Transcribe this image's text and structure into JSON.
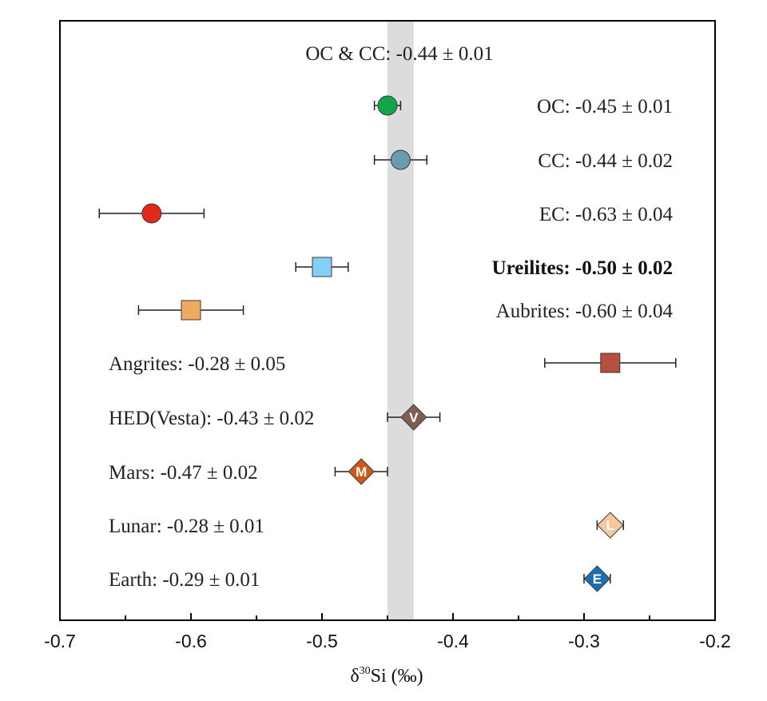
{
  "chart_data": {
    "type": "scatter",
    "xlabel_prefix": "δ",
    "xlabel_sup": "30",
    "xlabel_suffix": "Si (‰)",
    "xlim": [
      -0.7,
      -0.2
    ],
    "xticks": [
      "-0.7",
      "-0.6",
      "-0.5",
      "-0.4",
      "-0.3",
      "-0.2"
    ],
    "band": {
      "x": [
        -0.45,
        -0.43
      ],
      "color": "#dcdcdc"
    },
    "band_label": "OC & CC: -0.44 ± 0.01",
    "series": [
      {
        "name": "OC",
        "label": "OC: -0.45 ± 0.01",
        "x": -0.45,
        "err": 0.01,
        "marker": "circle",
        "color": "#14a54a",
        "letter": "",
        "label_side": "right",
        "bold": false
      },
      {
        "name": "CC",
        "label": "CC: -0.44 ± 0.02",
        "x": -0.44,
        "err": 0.02,
        "marker": "circle",
        "color": "#6a9bb0",
        "letter": "",
        "label_side": "right",
        "bold": false
      },
      {
        "name": "EC",
        "label": "EC: -0.63 ± 0.04",
        "x": -0.63,
        "err": 0.04,
        "marker": "circle",
        "color": "#e02b1c",
        "letter": "",
        "label_side": "right",
        "bold": false
      },
      {
        "name": "Ureilites",
        "label": "Ureilites: -0.50 ± 0.02",
        "x": -0.5,
        "err": 0.02,
        "marker": "square",
        "color": "#84d0f5",
        "letter": "",
        "label_side": "right",
        "bold": true
      },
      {
        "name": "Aubrites",
        "label": "Aubrites: -0.60  ±  0.04",
        "x": -0.6,
        "err": 0.04,
        "marker": "square",
        "color": "#f0aa60",
        "letter": "",
        "label_side": "right",
        "bold": false
      },
      {
        "name": "Angrites",
        "label": "Angrites: -0.28  ±  0.05",
        "x": -0.28,
        "err": 0.05,
        "marker": "square",
        "color": "#b5503e",
        "letter": "",
        "label_side": "left",
        "bold": false
      },
      {
        "name": "HED(Vesta)",
        "label": "HED(Vesta): -0.43  ±  0.02",
        "x": -0.43,
        "err": 0.02,
        "marker": "diamond",
        "color": "#7e5e55",
        "letter": "V",
        "label_side": "left",
        "bold": false
      },
      {
        "name": "Mars",
        "label": "Mars: -0.47  ±  0.02",
        "x": -0.47,
        "err": 0.02,
        "marker": "diamond",
        "color": "#cc5a18",
        "letter": "M",
        "label_side": "left",
        "bold": false
      },
      {
        "name": "Lunar",
        "label": "Lunar: -0.28  ±  0.01",
        "x": -0.28,
        "err": 0.01,
        "marker": "diamond",
        "color": "#f6c89e",
        "letter": "L",
        "label_side": "left",
        "bold": false
      },
      {
        "name": "Earth",
        "label": "Earth: -0.29  ±  0.01",
        "x": -0.29,
        "err": 0.01,
        "marker": "diamond",
        "color": "#1f6fb0",
        "letter": "E",
        "label_side": "left",
        "bold": false
      }
    ]
  }
}
